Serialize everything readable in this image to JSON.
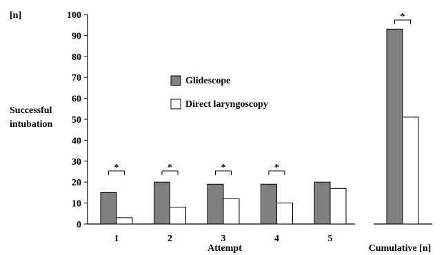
{
  "chart_data": [
    {
      "type": "bar",
      "ylabel": [
        "Successful",
        "intubation"
      ],
      "yunit": "[n]",
      "xlabel": "Attempt",
      "ylim": [
        0,
        100
      ],
      "yticks": [
        0,
        10,
        20,
        30,
        40,
        50,
        60,
        70,
        80,
        90,
        100
      ],
      "categories": [
        "1",
        "2",
        "3",
        "4",
        "5"
      ],
      "series": [
        {
          "name": "Glidescope",
          "values": [
            15,
            20,
            19,
            19,
            20
          ],
          "color": "#808080"
        },
        {
          "name": "Direct laryngoscopy",
          "values": [
            3,
            8,
            12,
            10,
            17
          ],
          "color": "#ffffff"
        }
      ],
      "significance": [
        "*",
        "*",
        "*",
        "*",
        ""
      ],
      "legend_position": "upper-middle"
    },
    {
      "type": "bar",
      "xlabel": "Cumulative  [n]",
      "ylim": [
        0,
        100
      ],
      "categories": [
        ""
      ],
      "series": [
        {
          "name": "Glidescope",
          "values": [
            93
          ],
          "color": "#808080"
        },
        {
          "name": "Direct laryngoscopy",
          "values": [
            51
          ],
          "color": "#ffffff"
        }
      ],
      "significance": [
        "*"
      ]
    }
  ]
}
